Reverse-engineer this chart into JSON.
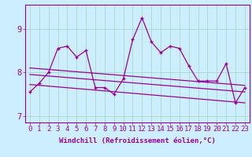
{
  "x": [
    0,
    1,
    2,
    3,
    4,
    5,
    6,
    7,
    8,
    9,
    10,
    11,
    12,
    13,
    14,
    15,
    16,
    17,
    18,
    19,
    20,
    21,
    22,
    23
  ],
  "y_main": [
    7.55,
    7.75,
    8.0,
    8.55,
    8.6,
    8.35,
    8.5,
    7.65,
    7.65,
    7.5,
    7.85,
    8.75,
    9.25,
    8.7,
    8.45,
    8.6,
    8.55,
    8.15,
    7.8,
    7.8,
    7.8,
    8.2,
    7.3,
    7.65
  ],
  "trend1_x": [
    0,
    23
  ],
  "trend1_y": [
    8.1,
    7.7
  ],
  "trend2_x": [
    0,
    23
  ],
  "trend2_y": [
    7.95,
    7.55
  ],
  "trend3_x": [
    0,
    23
  ],
  "trend3_y": [
    7.72,
    7.3
  ],
  "color": "#990099",
  "bg_color": "#cceeff",
  "grid_color": "#aaddcc",
  "ylim": [
    6.85,
    9.55
  ],
  "xlim": [
    -0.5,
    23.5
  ],
  "yticks": [
    7,
    8,
    9
  ],
  "xticks": [
    0,
    1,
    2,
    3,
    4,
    5,
    6,
    7,
    8,
    9,
    10,
    11,
    12,
    13,
    14,
    15,
    16,
    17,
    18,
    19,
    20,
    21,
    22,
    23
  ],
  "xlabel": "Windchill (Refroidissement éolien,°C)",
  "xlabel_fontsize": 6.5,
  "tick_fontsize": 6.5,
  "ytick_fontsize": 7.5
}
